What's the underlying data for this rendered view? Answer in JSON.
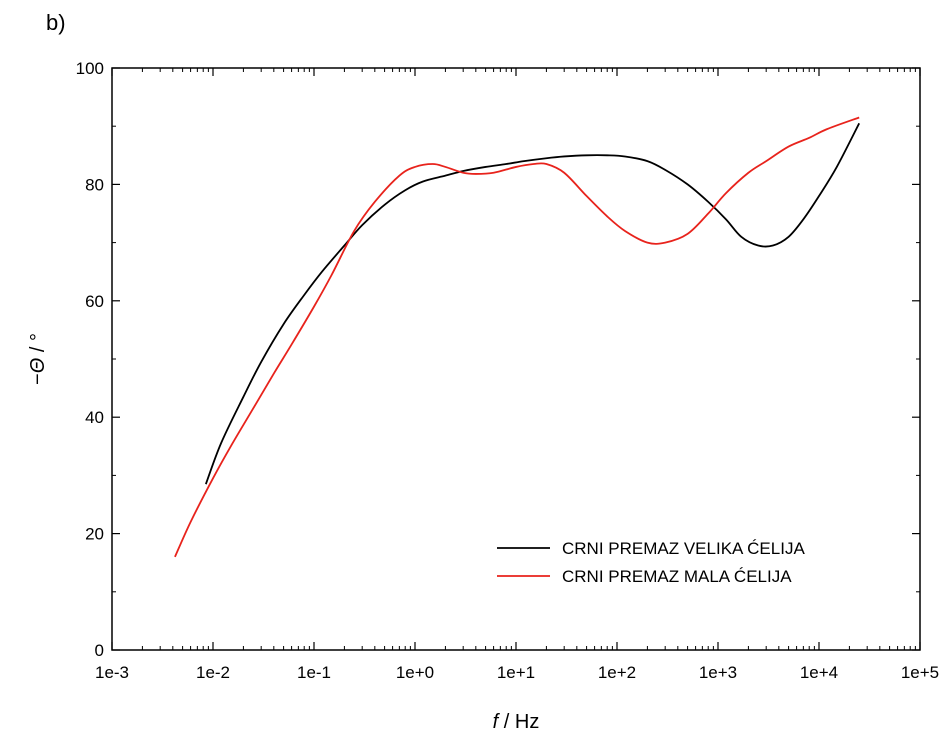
{
  "panel_label": "b)",
  "chart_data": {
    "type": "line",
    "xlabel_italic": "f",
    "xlabel_rest": " / Hz",
    "ylabel_prefix": "−",
    "ylabel_italic": "Θ",
    "ylabel_rest": " / °",
    "xscale": "log",
    "xlim": [
      0.001,
      100000
    ],
    "ylim": [
      0,
      100
    ],
    "x_ticks": [
      0.001,
      0.01,
      0.1,
      1,
      10,
      100,
      1000,
      10000,
      100000
    ],
    "x_tick_labels": [
      "1e-3",
      "1e-2",
      "1e-1",
      "1e+0",
      "1e+1",
      "1e+2",
      "1e+3",
      "1e+4",
      "1e+5"
    ],
    "y_ticks": [
      0,
      20,
      40,
      60,
      80,
      100
    ],
    "y_tick_labels": [
      "0",
      "20",
      "40",
      "60",
      "80",
      "100"
    ],
    "grid": false,
    "legend_position": "bottom-right",
    "series": [
      {
        "name": "CRNI PREMAZ VELIKA ĆELIJA",
        "color": "#000000",
        "x": [
          0.0085,
          0.012,
          0.02,
          0.03,
          0.05,
          0.08,
          0.12,
          0.2,
          0.3,
          0.5,
          0.8,
          1.2,
          2,
          3,
          5,
          8,
          12,
          20,
          30,
          50,
          80,
          120,
          200,
          300,
          500,
          800,
          1200,
          1700,
          2500,
          3500,
          5000,
          7000,
          10000,
          15000,
          25000
        ],
        "y": [
          28.5,
          35.5,
          43.5,
          49.5,
          56,
          61,
          65,
          69.5,
          73,
          76.5,
          79,
          80.5,
          81.5,
          82.3,
          83,
          83.5,
          84,
          84.5,
          84.8,
          85,
          85,
          84.8,
          84,
          82.5,
          80,
          77,
          74,
          71,
          69.5,
          69.5,
          71,
          74,
          78,
          83,
          90.5
        ]
      },
      {
        "name": "CRNI PREMAZ MALA ĆELIJA",
        "color": "#e8231c",
        "x": [
          0.0042,
          0.006,
          0.01,
          0.015,
          0.025,
          0.04,
          0.06,
          0.1,
          0.15,
          0.25,
          0.4,
          0.7,
          1,
          1.5,
          2,
          3,
          4,
          6,
          10,
          15,
          20,
          30,
          50,
          80,
          120,
          200,
          300,
          500,
          800,
          1200,
          2000,
          3000,
          5000,
          8000,
          12000,
          25000
        ],
        "y": [
          16,
          22,
          29.5,
          35,
          41.5,
          47.5,
          52.5,
          59,
          64.5,
          72,
          77,
          81.5,
          83,
          83.5,
          83,
          82,
          81.8,
          82,
          83,
          83.5,
          83.5,
          82,
          78,
          74.5,
          72,
          70,
          70,
          71.5,
          75,
          78.5,
          82,
          84,
          86.5,
          88,
          89.5,
          91.5
        ]
      }
    ]
  }
}
